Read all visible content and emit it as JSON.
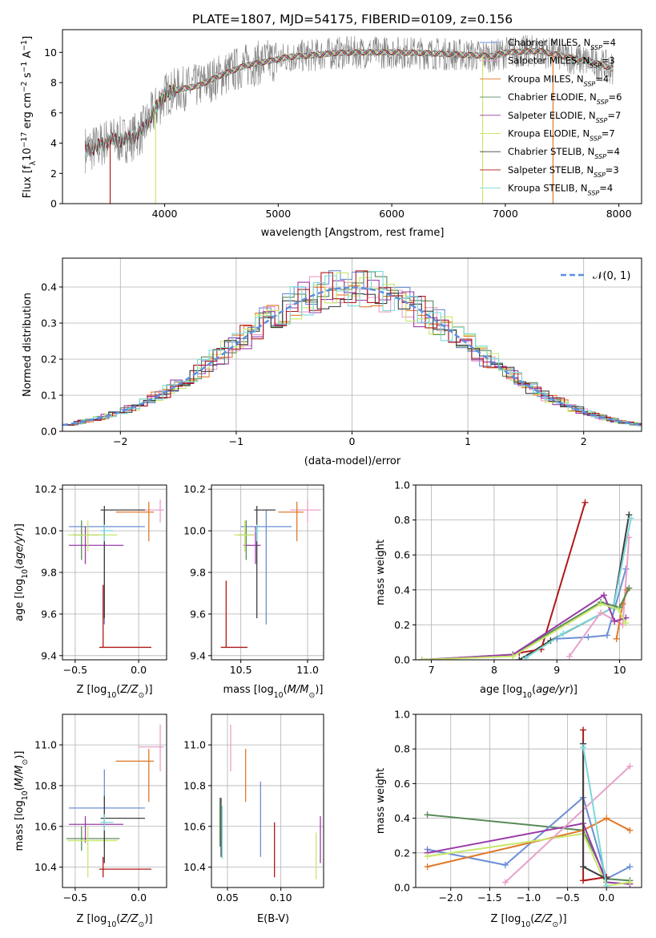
{
  "figure_title": "PLATE=1807, MJD=54175, FIBERID=0109, z=0.156",
  "colors": {
    "chabrier_miles": "#6b8fd6",
    "salpeter_miles": "#e8a0c8",
    "kroupa_miles": "#e07a2a",
    "chabrier_elodie": "#5a8a5a",
    "salpeter_elodie": "#9a3aa8",
    "kroupa_elodie": "#c8e86a",
    "chabrier_stelib": "#404040",
    "salpeter_stelib": "#b01818",
    "kroupa_stelib": "#7ad8d8",
    "data": "#808080",
    "gauss": "#5b8de0",
    "grid": "#b0b0b0"
  },
  "chart_data": [
    {
      "id": "spectrum",
      "type": "line",
      "title": "PLATE=1807, MJD=54175, FIBERID=0109, z=0.156",
      "xlabel": "wavelength [Angstrom, rest frame]",
      "ylabel": "Flux [fλ10⁻¹⁷ erg cm⁻² s⁻¹ A⁻¹]",
      "xlim": [
        3100,
        8200
      ],
      "ylim": [
        0,
        11.5
      ],
      "xticks": [
        4000,
        5000,
        6000,
        7000,
        8000
      ],
      "yticks": [
        0,
        2,
        4,
        6,
        8,
        10
      ],
      "legend_position": "top-right",
      "legend": [
        "Chabrier MILES, N_SSP=4",
        "Salpeter MILES, N_SSP=3",
        "Kroupa MILES, N_SSP=4",
        "Chabrier ELODIE, N_SSP=6",
        "Salpeter ELODIE, N_SSP=7",
        "Kroupa ELODIE, N_SSP=7",
        "Chabrier STELIB, N_SSP=4",
        "Salpeter STELIB, N_SSP=3",
        "Kroupa STELIB, N_SSP=4"
      ],
      "continuum": [
        [
          3300,
          3.6
        ],
        [
          3400,
          3.7
        ],
        [
          3500,
          4.2
        ],
        [
          3600,
          4.2
        ],
        [
          3700,
          4.3
        ],
        [
          3800,
          4.8
        ],
        [
          3900,
          6.0
        ],
        [
          4000,
          7.2
        ],
        [
          4100,
          7.5
        ],
        [
          4300,
          7.8
        ],
        [
          4500,
          8.5
        ],
        [
          4700,
          9.1
        ],
        [
          4900,
          9.4
        ],
        [
          5100,
          9.7
        ],
        [
          5300,
          9.8
        ],
        [
          5500,
          9.95
        ],
        [
          5700,
          10.0
        ],
        [
          6000,
          10.0
        ],
        [
          6300,
          9.95
        ],
        [
          6600,
          9.85
        ],
        [
          6900,
          9.75
        ],
        [
          7000,
          10.0
        ],
        [
          7300,
          10.1
        ],
        [
          7600,
          9.6
        ],
        [
          7800,
          9.3
        ],
        [
          7950,
          8.9
        ]
      ],
      "drop_lines": [
        [
          3520,
          "salpeter_stelib"
        ],
        [
          3920,
          "kroupa_elodie"
        ],
        [
          6800,
          "kroupa_elodie"
        ],
        [
          7420,
          "kroupa_miles"
        ]
      ]
    },
    {
      "id": "residuals",
      "type": "line",
      "xlabel": "(data-model)/error",
      "ylabel": "Normed distribution",
      "xlim": [
        -2.5,
        2.5
      ],
      "ylim": [
        0,
        0.48
      ],
      "xticks": [
        -2,
        -1,
        0,
        1,
        2
      ],
      "yticks": [
        0.0,
        0.1,
        0.2,
        0.3,
        0.4
      ],
      "legend": [
        "𝒩(0, 1)"
      ],
      "legend_position": "top-right"
    },
    {
      "id": "z_age",
      "type": "scatter",
      "xlabel": "Z [log10(Z/Z⊙)]",
      "ylabel": "age [log10(age/yr)]",
      "xlim": [
        -0.6,
        0.22
      ],
      "ylim": [
        9.38,
        10.22
      ],
      "xticks": [
        -0.5,
        0.0
      ],
      "yticks": [
        9.4,
        9.6,
        9.8,
        10.0,
        10.2
      ],
      "points": [
        {
          "c": "chabrier_miles",
          "x": -0.27,
          "y": 10.02,
          "xe": [
            -0.55,
            0.05
          ],
          "ye": [
            9.55,
            10.1
          ]
        },
        {
          "c": "salpeter_miles",
          "x": 0.17,
          "y": 10.1,
          "xe": [
            0.0,
            0.2
          ],
          "ye": [
            10.04,
            10.15
          ]
        },
        {
          "c": "kroupa_miles",
          "x": 0.08,
          "y": 10.09,
          "xe": [
            -0.18,
            0.12
          ],
          "ye": [
            9.95,
            10.14
          ]
        },
        {
          "c": "chabrier_elodie",
          "x": -0.45,
          "y": 9.98,
          "xe": [
            -0.52,
            -0.3
          ],
          "ye": [
            9.86,
            10.05
          ]
        },
        {
          "c": "salpeter_elodie",
          "x": -0.42,
          "y": 9.93,
          "xe": [
            -0.55,
            -0.12
          ],
          "ye": [
            9.84,
            10.02
          ]
        },
        {
          "c": "kroupa_elodie",
          "x": -0.4,
          "y": 9.98,
          "xe": [
            -0.56,
            -0.17
          ],
          "ye": [
            9.9,
            10.05
          ]
        },
        {
          "c": "chabrier_stelib",
          "x": -0.27,
          "y": 10.1,
          "xe": [
            -0.3,
            0.05
          ],
          "ye": [
            9.58,
            10.12
          ]
        },
        {
          "c": "salpeter_stelib",
          "x": -0.28,
          "y": 9.44,
          "xe": [
            -0.31,
            0.1
          ],
          "ye": [
            9.44,
            9.74
          ]
        },
        {
          "c": "kroupa_stelib",
          "x": -0.27,
          "y": 10.0,
          "xe": [
            -0.3,
            -0.2
          ],
          "ye": [
            9.95,
            10.03
          ]
        }
      ]
    },
    {
      "id": "mass_age",
      "type": "scatter",
      "xlabel": "mass [log10(M/M⊙)]",
      "ylabel": "",
      "xlim": [
        10.28,
        11.12
      ],
      "ylim": [
        9.38,
        10.22
      ],
      "xticks": [
        10.5,
        11.0
      ],
      "yticks": [
        9.4,
        9.6,
        9.8,
        10.0,
        10.2
      ],
      "points": [
        {
          "c": "chabrier_miles",
          "x": 10.69,
          "y": 10.02,
          "xe": [
            10.5,
            10.88
          ],
          "ye": [
            9.55,
            10.1
          ]
        },
        {
          "c": "salpeter_miles",
          "x": 11.0,
          "y": 10.1,
          "xe": [
            10.87,
            11.1
          ],
          "ye": [
            10.04,
            10.15
          ]
        },
        {
          "c": "kroupa_miles",
          "x": 10.92,
          "y": 10.09,
          "xe": [
            10.78,
            10.97
          ],
          "ye": [
            9.95,
            10.14
          ]
        },
        {
          "c": "chabrier_elodie",
          "x": 10.54,
          "y": 9.98,
          "xe": [
            10.48,
            10.6
          ],
          "ye": [
            9.86,
            10.05
          ]
        },
        {
          "c": "salpeter_elodie",
          "x": 10.61,
          "y": 9.93,
          "xe": [
            10.52,
            10.65
          ],
          "ye": [
            9.84,
            10.02
          ]
        },
        {
          "c": "kroupa_elodie",
          "x": 10.53,
          "y": 9.98,
          "xe": [
            10.45,
            10.6
          ],
          "ye": [
            9.9,
            10.05
          ]
        },
        {
          "c": "chabrier_stelib",
          "x": 10.62,
          "y": 10.1,
          "xe": [
            10.6,
            10.76
          ],
          "ye": [
            9.58,
            10.12
          ]
        },
        {
          "c": "salpeter_stelib",
          "x": 10.39,
          "y": 9.44,
          "xe": [
            10.35,
            10.55
          ],
          "ye": [
            9.44,
            9.76
          ]
        },
        {
          "c": "kroupa_stelib",
          "x": 10.62,
          "y": 10.0,
          "xe": [
            10.6,
            10.64
          ],
          "ye": [
            9.95,
            10.03
          ]
        }
      ]
    },
    {
      "id": "age_weight",
      "type": "line",
      "xlabel": "age [log10(age/yr)]",
      "ylabel": "mass weight",
      "xlim": [
        6.75,
        10.35
      ],
      "ylim": [
        0,
        1.0
      ],
      "xticks": [
        7,
        8,
        9,
        10
      ],
      "yticks": [
        0.0,
        0.2,
        0.4,
        0.6,
        0.8,
        1.0
      ],
      "series": [
        {
          "c": "chabrier_stelib",
          "points": [
            [
              8.4,
              0.0
            ],
            [
              8.9,
              0.11
            ],
            [
              9.9,
              0.3
            ],
            [
              10.15,
              0.83
            ]
          ]
        },
        {
          "c": "salpeter_stelib",
          "points": [
            [
              8.4,
              0.04
            ],
            [
              8.75,
              0.06
            ],
            [
              9.45,
              0.9
            ]
          ]
        },
        {
          "c": "kroupa_stelib",
          "points": [
            [
              8.5,
              0.01
            ],
            [
              9.1,
              0.15
            ],
            [
              9.9,
              0.3
            ],
            [
              10.18,
              0.81
            ]
          ]
        },
        {
          "c": "chabrier_miles",
          "points": [
            [
              9.0,
              0.12
            ],
            [
              9.5,
              0.13
            ],
            [
              9.8,
              0.14
            ],
            [
              10.1,
              0.52
            ]
          ]
        },
        {
          "c": "salpeter_miles",
          "points": [
            [
              9.2,
              0.02
            ],
            [
              9.7,
              0.27
            ],
            [
              10.05,
              0.2
            ],
            [
              10.15,
              0.7
            ]
          ]
        },
        {
          "c": "kroupa_miles",
          "points": [
            [
              9.95,
              0.12
            ],
            [
              10.05,
              0.32
            ],
            [
              10.12,
              0.4
            ]
          ]
        },
        {
          "c": "chabrier_elodie",
          "points": [
            [
              6.85,
              0.0
            ],
            [
              8.3,
              0.03
            ],
            [
              9.7,
              0.33
            ],
            [
              10.0,
              0.3
            ],
            [
              10.15,
              0.41
            ]
          ]
        },
        {
          "c": "salpeter_elodie",
          "points": [
            [
              6.85,
              0.0
            ],
            [
              8.3,
              0.03
            ],
            [
              9.75,
              0.37
            ],
            [
              9.92,
              0.22
            ],
            [
              10.1,
              0.24
            ]
          ]
        },
        {
          "c": "kroupa_elodie",
          "points": [
            [
              6.85,
              0.0
            ],
            [
              8.3,
              0.02
            ],
            [
              9.7,
              0.32
            ],
            [
              9.98,
              0.29
            ],
            [
              10.1,
              0.21
            ]
          ]
        }
      ]
    },
    {
      "id": "z_mass",
      "type": "scatter",
      "xlabel": "Z [log10(Z/Z⊙)]",
      "ylabel": "mass [log10(M/M⊙)]",
      "xlim": [
        -0.6,
        0.22
      ],
      "ylim": [
        10.3,
        11.15
      ],
      "xticks": [
        -0.5,
        0.0
      ],
      "yticks": [
        10.4,
        10.6,
        10.8,
        11.0
      ],
      "points": [
        {
          "c": "chabrier_miles",
          "x": -0.27,
          "y": 10.69,
          "xe": [
            -0.55,
            0.05
          ],
          "ye": [
            10.5,
            10.88
          ]
        },
        {
          "c": "salpeter_miles",
          "x": 0.17,
          "y": 10.99,
          "xe": [
            0.0,
            0.2
          ],
          "ye": [
            10.87,
            11.1
          ]
        },
        {
          "c": "kroupa_miles",
          "x": 0.08,
          "y": 10.92,
          "xe": [
            -0.18,
            0.12
          ],
          "ye": [
            10.72,
            10.98
          ]
        },
        {
          "c": "chabrier_elodie",
          "x": -0.45,
          "y": 10.54,
          "xe": [
            -0.57,
            -0.15
          ],
          "ye": [
            10.48,
            10.6
          ]
        },
        {
          "c": "salpeter_elodie",
          "x": -0.42,
          "y": 10.61,
          "xe": [
            -0.55,
            -0.12
          ],
          "ye": [
            10.52,
            10.65
          ]
        },
        {
          "c": "kroupa_elodie",
          "x": -0.4,
          "y": 10.53,
          "xe": [
            -0.56,
            -0.17
          ],
          "ye": [
            10.35,
            10.6
          ]
        },
        {
          "c": "chabrier_stelib",
          "x": -0.27,
          "y": 10.64,
          "xe": [
            -0.3,
            0.05
          ],
          "ye": [
            10.42,
            10.75
          ]
        },
        {
          "c": "salpeter_stelib",
          "x": -0.28,
          "y": 10.39,
          "xe": [
            -0.31,
            0.1
          ],
          "ye": [
            10.35,
            10.45
          ]
        },
        {
          "c": "kroupa_stelib",
          "x": -0.27,
          "y": 10.62,
          "xe": [
            -0.3,
            -0.2
          ],
          "ye": [
            10.58,
            10.66
          ]
        }
      ]
    },
    {
      "id": "ebv",
      "type": "scatter",
      "xlabel": "E(B-V)",
      "ylabel": "",
      "xlim": [
        0.035,
        0.14
      ],
      "ylim": [
        10.3,
        11.15
      ],
      "xticks": [
        0.05,
        0.1
      ],
      "yticks": [
        10.4,
        10.6,
        10.8,
        11.0
      ],
      "points": [
        {
          "c": "chabrier_miles",
          "x": 0.081,
          "ye": [
            10.45,
            10.82
          ]
        },
        {
          "c": "salpeter_miles",
          "x": 0.053,
          "ye": [
            10.87,
            11.1
          ]
        },
        {
          "c": "kroupa_miles",
          "x": 0.067,
          "ye": [
            10.72,
            10.98
          ]
        },
        {
          "c": "chabrier_elodie",
          "x": 0.043,
          "ye": [
            10.5,
            10.74
          ]
        },
        {
          "c": "salpeter_elodie",
          "x": 0.137,
          "ye": [
            10.42,
            10.65
          ]
        },
        {
          "c": "kroupa_elodie",
          "x": 0.133,
          "ye": [
            10.34,
            10.57
          ]
        },
        {
          "c": "chabrier_stelib",
          "x": 0.044,
          "ye": [
            10.45,
            10.74
          ]
        },
        {
          "c": "salpeter_stelib",
          "x": 0.094,
          "ye": [
            10.35,
            10.62
          ]
        },
        {
          "c": "kroupa_stelib",
          "x": 0.045,
          "ye": [
            10.44,
            10.7
          ]
        }
      ]
    },
    {
      "id": "z_weight",
      "type": "line",
      "xlabel": "Z [log10(Z/Z⊙)]",
      "ylabel": "mass weight",
      "xlim": [
        -2.45,
        0.45
      ],
      "ylim": [
        0,
        1.0
      ],
      "xticks": [
        -2.0,
        -1.5,
        -1.0,
        -0.5,
        0.0
      ],
      "yticks": [
        0.0,
        0.2,
        0.4,
        0.6,
        0.8,
        1.0
      ],
      "series": [
        {
          "c": "chabrier_elodie",
          "points": [
            [
              -2.3,
              0.42
            ],
            [
              -0.3,
              0.33
            ],
            [
              0.0,
              0.05
            ],
            [
              0.3,
              0.04
            ]
          ]
        },
        {
          "c": "chabrier_miles",
          "points": [
            [
              -2.3,
              0.22
            ],
            [
              -1.3,
              0.13
            ],
            [
              -0.3,
              0.52
            ],
            [
              0.0,
              0.05
            ],
            [
              0.3,
              0.12
            ]
          ]
        },
        {
          "c": "kroupa_miles",
          "points": [
            [
              -2.3,
              0.12
            ],
            [
              -0.3,
              0.33
            ],
            [
              0.0,
              0.4
            ],
            [
              0.3,
              0.33
            ]
          ]
        },
        {
          "c": "salpeter_elodie",
          "points": [
            [
              -2.3,
              0.2
            ],
            [
              -0.3,
              0.37
            ],
            [
              0.0,
              0.03
            ],
            [
              0.3,
              0.02
            ]
          ]
        },
        {
          "c": "kroupa_elodie",
          "points": [
            [
              -2.3,
              0.18
            ],
            [
              -0.3,
              0.31
            ],
            [
              0.0,
              0.01
            ],
            [
              0.3,
              0.03
            ]
          ]
        },
        {
          "c": "salpeter_miles",
          "points": [
            [
              -1.3,
              0.03
            ],
            [
              0.3,
              0.7
            ]
          ]
        },
        {
          "c": "salpeter_stelib",
          "points": [
            [
              -0.3,
              0.91
            ],
            [
              -0.3,
              0.04
            ],
            [
              0.0,
              0.06
            ]
          ]
        },
        {
          "c": "chabrier_stelib",
          "points": [
            [
              -0.3,
              0.83
            ],
            [
              -0.3,
              0.12
            ],
            [
              0.0,
              0.05
            ]
          ]
        },
        {
          "c": "kroupa_stelib",
          "points": [
            [
              -0.3,
              0.81
            ],
            [
              0.0,
              0.01
            ]
          ]
        }
      ]
    }
  ]
}
